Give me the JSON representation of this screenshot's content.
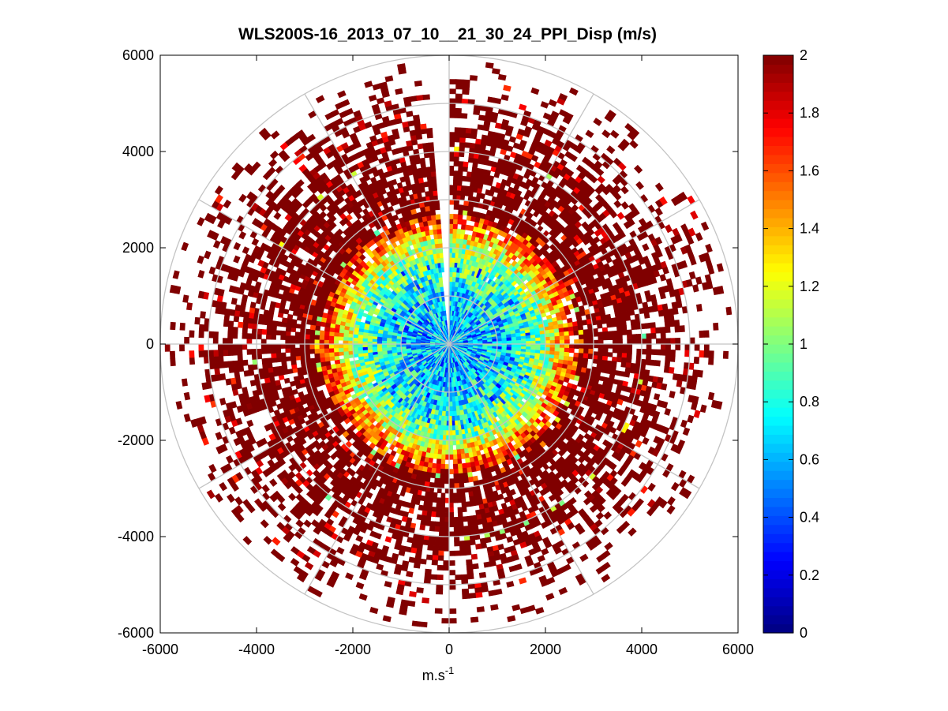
{
  "chart_data": {
    "type": "heatmap",
    "subtype": "polar-ppi",
    "title": "WLS200S-16_2013_07_10__21_30_24_PPI_Disp (m/s)",
    "xlabel": "m.s",
    "xlabel_sup": "-1",
    "ylabel": "",
    "xlim": [
      -6000,
      6000
    ],
    "ylim": [
      -6000,
      6000
    ],
    "x_ticks": [
      -6000,
      -4000,
      -2000,
      0,
      2000,
      4000,
      6000
    ],
    "y_ticks": [
      6000,
      4000,
      2000,
      0,
      -2000,
      -4000,
      -6000
    ],
    "x_tick_labels": [
      "-6000",
      "-4000",
      "-2000",
      "0",
      "2000",
      "4000",
      "6000"
    ],
    "y_tick_labels": [
      "6000",
      "4000",
      "2000",
      "0",
      "-2000",
      "-4000",
      "-6000"
    ],
    "polar_grid": {
      "range_rings_m": [
        1000,
        2000,
        3000,
        4000,
        5000,
        6000
      ],
      "spoke_step_deg": 30,
      "max_range_m": 6000
    },
    "data_gap_azimuth_deg": [
      -5,
      0
    ],
    "colorbar": {
      "min": 0,
      "max": 2,
      "ticks": [
        2,
        1.8,
        1.6,
        1.4,
        1.2,
        1,
        0.8,
        0.6,
        0.4,
        0.2,
        0
      ],
      "tick_labels": [
        "2",
        "1.8",
        "1.6",
        "1.4",
        "1.2",
        "1",
        "0.8",
        "0.6",
        "0.4",
        "0.2",
        "0"
      ],
      "colormap": "jet",
      "levels": 64
    },
    "radial_profile": {
      "range_m": [
        0,
        500,
        1000,
        1500,
        2000,
        2500,
        3000,
        3500,
        4000,
        4500,
        5000,
        5500,
        6000
      ],
      "typical_value_ms": [
        0.65,
        0.6,
        0.7,
        0.85,
        1.05,
        1.6,
        1.95,
        2.0,
        2.0,
        2.0,
        2.0,
        2.0,
        2.0
      ],
      "coverage": [
        1,
        1,
        1,
        1,
        0.97,
        0.9,
        0.85,
        0.75,
        0.7,
        0.55,
        0.35,
        0.18,
        0.08
      ]
    }
  }
}
